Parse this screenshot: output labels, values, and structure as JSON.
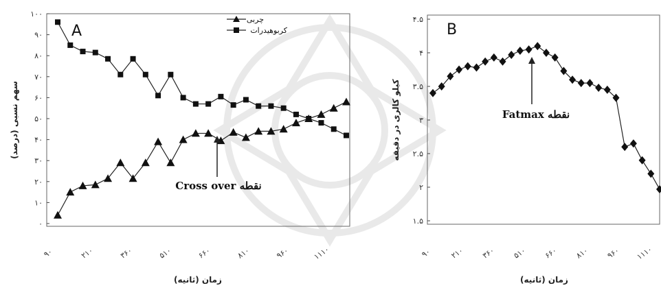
{
  "chart_data": [
    {
      "type": "line",
      "panel": "A",
      "xlabel": "زمان (ثانیه)",
      "ylabel": "سهم نسبی (درصد)",
      "ylim": [
        0,
        100
      ],
      "yticks": [
        "۰",
        "۱۰",
        "۲۰",
        "۳۰",
        "۴۰",
        "۵۰",
        "۶۰",
        "۷۰",
        "۸۰",
        "۹۰",
        "۱۰۰"
      ],
      "xticks": [
        "۹۰",
        "۲۱۰",
        "۳۶۰",
        "۵۱۰",
        "۶۶۰",
        "۸۱۰",
        "۹۶۰",
        "۱۱۱۰"
      ],
      "grid": false,
      "legend_position": "top-center",
      "series": [
        {
          "name": "چربی",
          "marker": "triangle",
          "values": [
            4,
            15,
            18,
            18.5,
            21.5,
            29,
            21.5,
            29,
            39,
            29,
            40,
            43,
            43,
            39.5,
            43.5,
            41,
            44,
            44,
            45,
            48,
            50,
            52,
            55,
            58
          ]
        },
        {
          "name": "کربوهیدرات",
          "marker": "square",
          "values": [
            96,
            85,
            82,
            81.5,
            78.5,
            71,
            78.5,
            71,
            61,
            71,
            60,
            57,
            57,
            60.5,
            56.5,
            59,
            56,
            56,
            55,
            52,
            50,
            48,
            45,
            42
          ]
        }
      ],
      "annotation": {
        "text": "نقطه Cross over"
      }
    },
    {
      "type": "line",
      "panel": "B",
      "xlabel": "زمان (ثانیه)",
      "ylabel": "کیلو کالری در دقیقه",
      "ylim": [
        1.5,
        4.5
      ],
      "yticks": [
        "۱.۵",
        "۲",
        "۲.۵",
        "۳",
        "۳.۵",
        "۴",
        "۴.۵"
      ],
      "xticks": [
        "۹۰",
        "۲۱۰",
        "۳۶۰",
        "۵۱۰",
        "۶۶۰",
        "۸۱۰",
        "۹۶۰",
        "۱۱۱۰"
      ],
      "grid": false,
      "series": [
        {
          "name": "",
          "marker": "diamond",
          "values": [
            3.4,
            3.5,
            3.65,
            3.75,
            3.8,
            3.78,
            3.87,
            3.93,
            3.87,
            3.97,
            4.03,
            4.05,
            4.1,
            4.0,
            3.93,
            3.73,
            3.6,
            3.55,
            3.55,
            3.48,
            3.45,
            3.33,
            2.6,
            2.65,
            2.4,
            2.2,
            1.97
          ]
        }
      ],
      "annotation": {
        "text": "نقطه Fatmax"
      }
    }
  ]
}
